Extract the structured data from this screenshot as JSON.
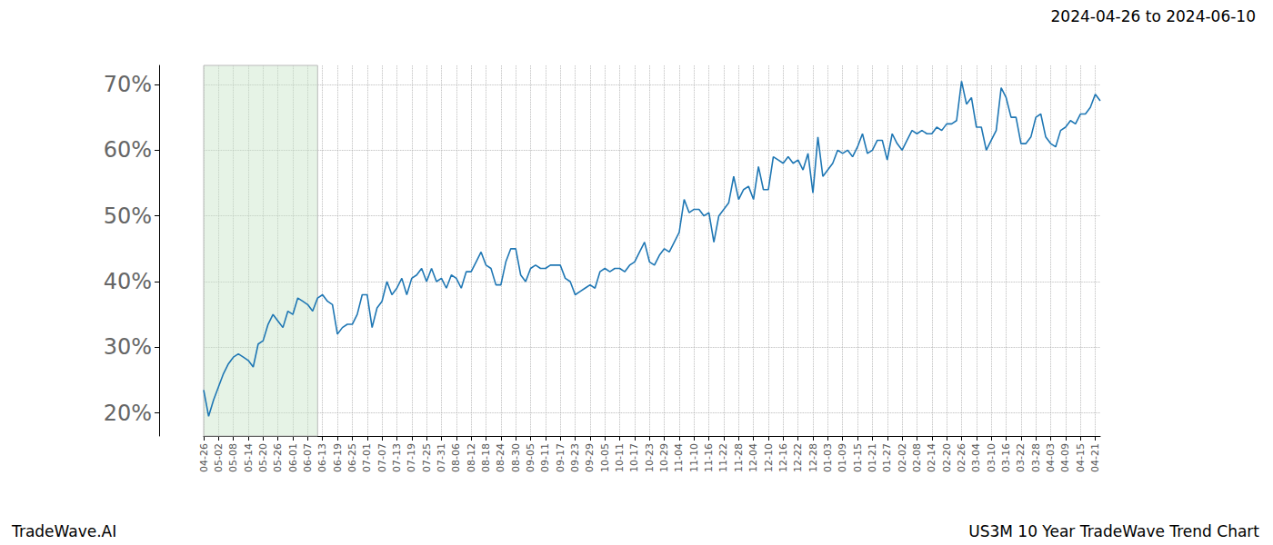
{
  "chart_data": {
    "type": "line",
    "title": "2024-04-26 to 2024-06-10",
    "annotations": [
      "TradeWave.AI",
      "US3M 10 Year TradeWave Trend Chart"
    ],
    "categories": [
      "04-26",
      null,
      null,
      "05-02",
      null,
      null,
      "05-08",
      null,
      null,
      "05-14",
      null,
      null,
      "05-20",
      null,
      null,
      "05-26",
      null,
      null,
      "06-01",
      null,
      null,
      "06-07",
      null,
      null,
      "06-13",
      null,
      null,
      "06-19",
      null,
      null,
      "06-25",
      null,
      null,
      "07-01",
      null,
      null,
      "07-07",
      null,
      null,
      "07-13",
      null,
      null,
      "07-19",
      null,
      null,
      "07-25",
      null,
      null,
      "07-31",
      null,
      null,
      "08-06",
      null,
      null,
      "08-12",
      null,
      null,
      "08-18",
      null,
      null,
      "08-24",
      null,
      null,
      "08-30",
      null,
      null,
      "09-05",
      null,
      null,
      "09-11",
      null,
      null,
      "09-17",
      null,
      null,
      "09-23",
      null,
      null,
      "09-29",
      null,
      null,
      "10-05",
      null,
      null,
      "10-11",
      null,
      null,
      "10-17",
      null,
      null,
      "10-23",
      null,
      null,
      "10-29",
      null,
      null,
      "11-04",
      null,
      null,
      "11-10",
      null,
      null,
      "11-16",
      null,
      null,
      "11-22",
      null,
      null,
      "11-28",
      null,
      null,
      "12-04",
      null,
      null,
      "12-10",
      null,
      null,
      "12-16",
      null,
      null,
      "12-22",
      null,
      null,
      "12-28",
      null,
      null,
      "01-03",
      null,
      null,
      "01-09",
      null,
      null,
      "01-15",
      null,
      null,
      "01-21",
      null,
      null,
      "01-27",
      null,
      null,
      "02-02",
      null,
      null,
      "02-08",
      null,
      null,
      "02-14",
      null,
      null,
      "02-20",
      null,
      null,
      "02-26",
      null,
      null,
      "03-04",
      null,
      null,
      "03-10",
      null,
      null,
      "03-16",
      null,
      null,
      "03-22",
      null,
      null,
      "03-28",
      null,
      null,
      "04-03",
      null,
      null,
      "04-09",
      null,
      null,
      "04-15",
      null,
      null,
      "04-21",
      null
    ],
    "values": [
      23.5,
      19.5,
      22,
      24,
      26,
      27.5,
      28.5,
      29,
      28.5,
      28,
      27,
      30.5,
      31,
      33.5,
      35,
      34,
      33,
      35.5,
      35,
      37.5,
      37,
      36.5,
      35.5,
      37.5,
      38,
      37,
      36.5,
      32,
      33,
      33.5,
      33.5,
      35,
      38,
      38,
      33,
      36,
      37,
      40,
      38,
      39,
      40.5,
      38,
      40.5,
      41,
      42,
      40,
      42,
      40,
      40.5,
      39,
      41,
      40.5,
      39,
      41.5,
      41.5,
      43,
      44.5,
      42.5,
      42,
      39.5,
      39.5,
      43,
      45,
      45,
      41,
      40,
      42,
      42.5,
      42,
      42,
      42.5,
      42.5,
      42.5,
      40.5,
      40,
      38,
      38.5,
      39,
      39.5,
      39,
      41.5,
      42,
      41.5,
      42,
      42,
      41.5,
      42.5,
      43,
      44.5,
      46,
      43,
      42.5,
      44,
      45,
      44.5,
      46,
      47.5,
      52.5,
      50.5,
      51,
      51,
      50,
      50.5,
      46,
      50,
      51,
      52,
      56,
      52.5,
      54,
      54.5,
      52.5,
      57.5,
      54,
      54,
      59,
      58.5,
      58,
      59,
      58,
      58.5,
      57,
      59.5,
      53.5,
      62,
      56,
      57,
      58,
      60,
      59.5,
      60,
      59,
      60.5,
      62.5,
      59.5,
      60,
      61.5,
      61.5,
      58.5,
      62.5,
      61,
      60,
      61.5,
      63,
      62.5,
      63,
      62.5,
      62.5,
      63.5,
      63,
      64,
      64,
      64.5,
      70.5,
      67,
      68,
      63.5,
      63.5,
      60,
      61.5,
      63,
      69.5,
      68,
      65,
      65,
      61,
      61,
      62,
      65,
      65.5,
      62,
      61,
      60.5,
      63,
      63.5,
      64.5,
      64,
      65.5,
      65.5,
      66.5,
      68.5,
      67.5
    ],
    "color": "#1f77b4",
    "ylim": [
      16.5,
      72.9
    ],
    "yticks": [
      {
        "value": 20,
        "label": "20%"
      },
      {
        "value": 30,
        "label": "30%"
      },
      {
        "value": 40,
        "label": "40%"
      },
      {
        "value": 50,
        "label": "50%"
      },
      {
        "value": 60,
        "label": "60%"
      },
      {
        "value": 70,
        "label": "70%"
      }
    ],
    "grid": true
  }
}
